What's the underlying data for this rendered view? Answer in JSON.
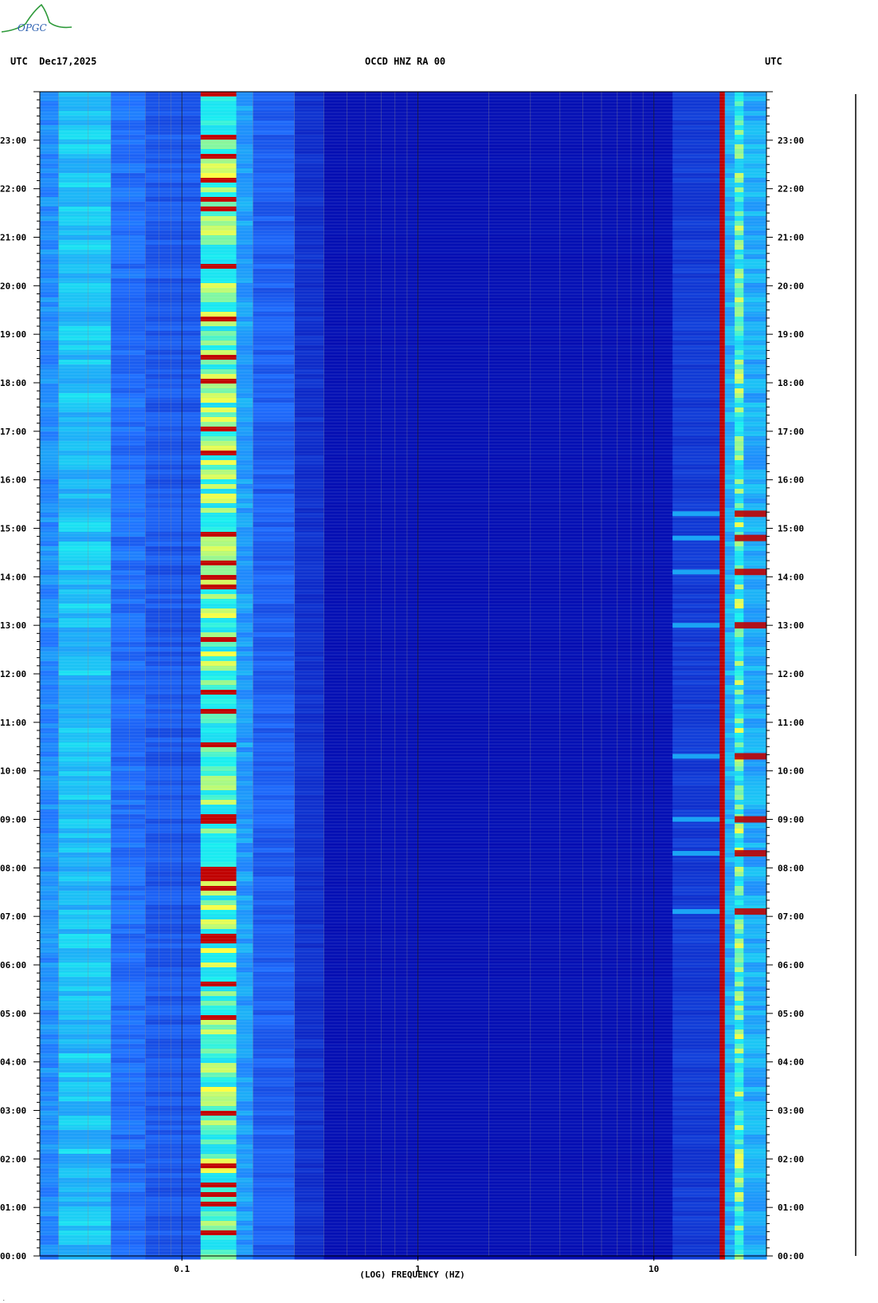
{
  "header": {
    "left": "UTC  Dec17,2025",
    "center": "OCCD HNZ RA 00",
    "right": "UTC"
  },
  "logo": {
    "text": "OPGC",
    "icon": "volcano-logo-icon"
  },
  "colors": {
    "low": "#0000a8",
    "mid": "#1f6fff",
    "high": "#19f0f0",
    "peak": "#ffff40",
    "extreme": "#c00000"
  },
  "chart_data": {
    "type": "heatmap",
    "title": "OCCD HNZ RA 00",
    "xlabel": "(LOG) FREQUENCY (HZ)",
    "ylabel": "UTC",
    "x_scale": "log",
    "x_range_hz": [
      0.025,
      30
    ],
    "x_tick_labels": [
      {
        "value": 0.1,
        "label": "0.1"
      },
      {
        "value": 1,
        "label": "1"
      },
      {
        "value": 10,
        "label": "10"
      }
    ],
    "y_range_hours": [
      0,
      24
    ],
    "y_tick_labels": [
      "00:00",
      "01:00",
      "02:00",
      "03:00",
      "04:00",
      "05:00",
      "06:00",
      "07:00",
      "08:00",
      "09:00",
      "10:00",
      "11:00",
      "12:00",
      "13:00",
      "14:00",
      "15:00",
      "16:00",
      "17:00",
      "18:00",
      "19:00",
      "20:00",
      "21:00",
      "22:00",
      "23:00"
    ],
    "bands": [
      {
        "f_from": 0.025,
        "f_to": 0.03,
        "level": 0.45
      },
      {
        "f_from": 0.03,
        "f_to": 0.05,
        "level": 0.62
      },
      {
        "f_from": 0.05,
        "f_to": 0.07,
        "level": 0.35
      },
      {
        "f_from": 0.07,
        "f_to": 0.12,
        "level": 0.28
      },
      {
        "f_from": 0.12,
        "f_to": 0.17,
        "level": 0.85
      },
      {
        "f_from": 0.17,
        "f_to": 0.2,
        "level": 0.5
      },
      {
        "f_from": 0.2,
        "f_to": 0.3,
        "level": 0.3
      },
      {
        "f_from": 0.3,
        "f_to": 0.4,
        "level": 0.15
      },
      {
        "f_from": 0.4,
        "f_to": 12,
        "level": 0.05
      },
      {
        "f_from": 12,
        "f_to": 19,
        "level": 0.18
      },
      {
        "f_from": 19,
        "f_to": 20,
        "level": 1.0
      },
      {
        "f_from": 20,
        "f_to": 22,
        "level": 0.55
      },
      {
        "f_from": 22,
        "f_to": 24,
        "level": 0.8
      },
      {
        "f_from": 24,
        "f_to": 30,
        "level": 0.55
      }
    ],
    "events_hours": [
      7.1,
      8.3,
      9.0,
      10.3,
      13.0,
      14.1,
      14.8,
      15.3
    ],
    "grid": true
  }
}
